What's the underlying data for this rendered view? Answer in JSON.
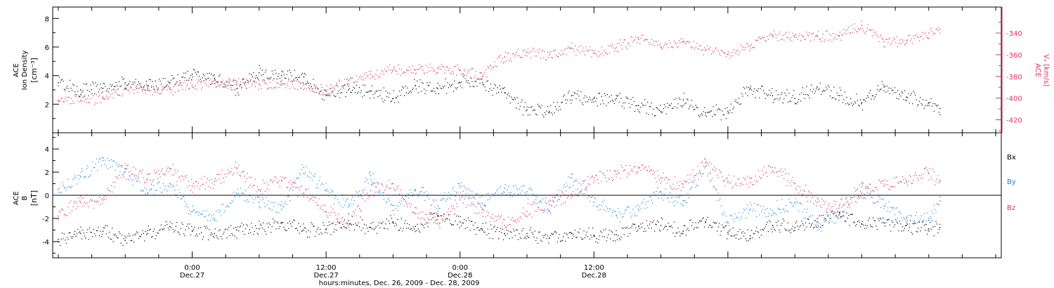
{
  "colors": {
    "black": "#000000",
    "pink": "#e0305f",
    "blue": "#1a86e0"
  },
  "chart_data": [
    {
      "type": "scatter",
      "panel": "top",
      "x_unit": "hours since Dec. 26, 2009 12:00",
      "left_axis": {
        "label_lines": [
          "ACE",
          "Ion Density"
        ],
        "unit": "[cm⁻³]",
        "ylim": [
          0,
          8.8
        ],
        "ticks": [
          2,
          4,
          6,
          8
        ],
        "tick_labels": [
          "2",
          "4",
          "6",
          "8"
        ]
      },
      "right_axis": {
        "label_lines": [
          "ACE",
          "Vₓ [km/s]"
        ],
        "ylim": [
          -432,
          -316
        ],
        "ticks": [
          -420,
          -400,
          -380,
          -360,
          -340
        ],
        "tick_labels": [
          "-420",
          "-400",
          "-380",
          "-360",
          "-340"
        ]
      },
      "series": [
        {
          "name": "",
          "axis": "left",
          "color": "#000000",
          "x": [
            0,
            2,
            4,
            6,
            8,
            10,
            12,
            14,
            16,
            18,
            20,
            22,
            24,
            26,
            28,
            30,
            32,
            34,
            36,
            38,
            40,
            42,
            44,
            46,
            48,
            50,
            52,
            54,
            56,
            58,
            60,
            62,
            64,
            66,
            68,
            70,
            72,
            74,
            76,
            78,
            79
          ],
          "y": [
            3.5,
            3.0,
            3.1,
            3.5,
            3.3,
            3.5,
            4.1,
            3.8,
            3.1,
            4.2,
            4.0,
            3.9,
            2.6,
            3.0,
            2.9,
            2.4,
            3.3,
            3.1,
            3.5,
            3.5,
            2.8,
            1.6,
            1.5,
            2.6,
            2.4,
            2.4,
            1.9,
            1.5,
            2.3,
            1.4,
            1.5,
            3.1,
            2.6,
            2.4,
            3.2,
            2.6,
            2.1,
            3.2,
            2.5,
            2.1,
            1.7
          ]
        },
        {
          "name": "",
          "axis": "right",
          "color": "#e0305f",
          "x": [
            0,
            2,
            4,
            6,
            8,
            10,
            12,
            14,
            16,
            18,
            20,
            22,
            24,
            26,
            28,
            30,
            32,
            34,
            36,
            38,
            40,
            42,
            44,
            46,
            48,
            50,
            52,
            54,
            56,
            58,
            60,
            62,
            64,
            66,
            68,
            70,
            72,
            74,
            76,
            78,
            79
          ],
          "y": [
            -402,
            -402,
            -400,
            -392,
            -393,
            -392,
            -388,
            -387,
            -386,
            -387,
            -387,
            -388,
            -394,
            -384,
            -378,
            -374,
            -374,
            -372,
            -374,
            -380,
            -362,
            -358,
            -360,
            -354,
            -359,
            -353,
            -346,
            -353,
            -348,
            -356,
            -360,
            -352,
            -342,
            -344,
            -343,
            -343,
            -333,
            -348,
            -347,
            -340,
            -337
          ]
        }
      ]
    },
    {
      "type": "scatter",
      "panel": "bottom",
      "x_unit": "hours since Dec. 26, 2009 12:00",
      "left_axis": {
        "label_lines": [
          "ACE",
          "B"
        ],
        "unit": "[nT]",
        "ylim": [
          -5.4,
          5.4
        ],
        "ticks": [
          -4,
          -2,
          0,
          2,
          4
        ],
        "tick_labels": [
          "-4",
          "-2",
          "0",
          "2",
          "4"
        ]
      },
      "zero_line": true,
      "legend_position": "right",
      "series": [
        {
          "name": "Bx",
          "color": "#000000",
          "x": [
            0,
            2,
            4,
            6,
            8,
            10,
            12,
            14,
            16,
            18,
            20,
            22,
            24,
            26,
            28,
            30,
            32,
            34,
            36,
            38,
            40,
            42,
            44,
            46,
            48,
            50,
            52,
            54,
            56,
            58,
            60,
            62,
            64,
            66,
            68,
            70,
            72,
            74,
            76,
            78,
            79
          ],
          "y": [
            -3.8,
            -3.3,
            -3.1,
            -3.9,
            -3.3,
            -2.7,
            -3.1,
            -3.3,
            -3.0,
            -2.9,
            -2.4,
            -3.0,
            -2.9,
            -2.2,
            -2.8,
            -2.3,
            -2.7,
            -1.8,
            -2.3,
            -3.0,
            -3.3,
            -3.3,
            -3.7,
            -3.3,
            -3.5,
            -3.4,
            -2.7,
            -2.6,
            -3.1,
            -2.3,
            -3.2,
            -3.5,
            -2.6,
            -2.8,
            -2.3,
            -1.5,
            -2.5,
            -2.4,
            -2.6,
            -2.9,
            -2.8
          ]
        },
        {
          "name": "By",
          "color": "#1a86e0",
          "x": [
            0,
            2,
            4,
            6,
            8,
            10,
            12,
            14,
            16,
            18,
            20,
            22,
            24,
            26,
            28,
            30,
            32,
            34,
            36,
            38,
            40,
            42,
            44,
            46,
            48,
            50,
            52,
            54,
            56,
            58,
            60,
            62,
            64,
            66,
            68,
            70,
            72,
            74,
            76,
            78,
            79
          ],
          "y": [
            0.5,
            1.6,
            3.0,
            2.0,
            0.2,
            1.0,
            -1.4,
            -2.0,
            0.2,
            -0.6,
            -1.2,
            2.4,
            0.4,
            -1.0,
            1.7,
            -1.3,
            0.5,
            -0.9,
            0.8,
            -0.7,
            0.6,
            0.3,
            -1.4,
            1.5,
            -0.6,
            -1.7,
            -1.2,
            0.3,
            -0.9,
            2.5,
            -2.3,
            -1.2,
            -1.3,
            -0.6,
            -2.8,
            -1.6,
            0.7,
            -0.9,
            -1.9,
            -2.0,
            -0.5
          ]
        },
        {
          "name": "Bz",
          "color": "#e0305f",
          "x": [
            0,
            2,
            4,
            6,
            8,
            10,
            12,
            14,
            16,
            18,
            20,
            22,
            24,
            26,
            28,
            30,
            32,
            34,
            36,
            38,
            40,
            42,
            44,
            46,
            48,
            50,
            52,
            54,
            56,
            58,
            60,
            62,
            64,
            66,
            68,
            70,
            72,
            74,
            76,
            78,
            79
          ],
          "y": [
            -1.8,
            -0.6,
            -0.4,
            2.3,
            1.4,
            2.3,
            0.8,
            1.2,
            2.3,
            0.5,
            1.3,
            0.2,
            -1.4,
            -2.6,
            0.4,
            1.0,
            -1.6,
            -2.4,
            -0.4,
            -1.2,
            -2.6,
            -1.4,
            -0.8,
            0.1,
            1.5,
            1.8,
            2.4,
            1.5,
            0.7,
            2.8,
            1.2,
            1.1,
            2.4,
            1.0,
            -0.6,
            -0.9,
            0.2,
            0.8,
            1.2,
            1.9,
            1.2
          ]
        }
      ]
    }
  ],
  "time_axis": {
    "xlim": [
      -0.5,
      84.5
    ],
    "major_ticks": [
      12,
      36,
      60
    ],
    "tick_labels": [
      {
        "x": 12,
        "time": "0:00",
        "date": "Dec.27"
      },
      {
        "x": 24,
        "time": "12:00",
        "date": "Dec.27"
      },
      {
        "x": 36,
        "time": "0:00",
        "date": "Dec.28"
      },
      {
        "x": 48,
        "time": "12:00",
        "date": "Dec.28"
      }
    ],
    "title": "hours:minutes, Dec. 26, 2009 - Dec. 28, 2009"
  }
}
